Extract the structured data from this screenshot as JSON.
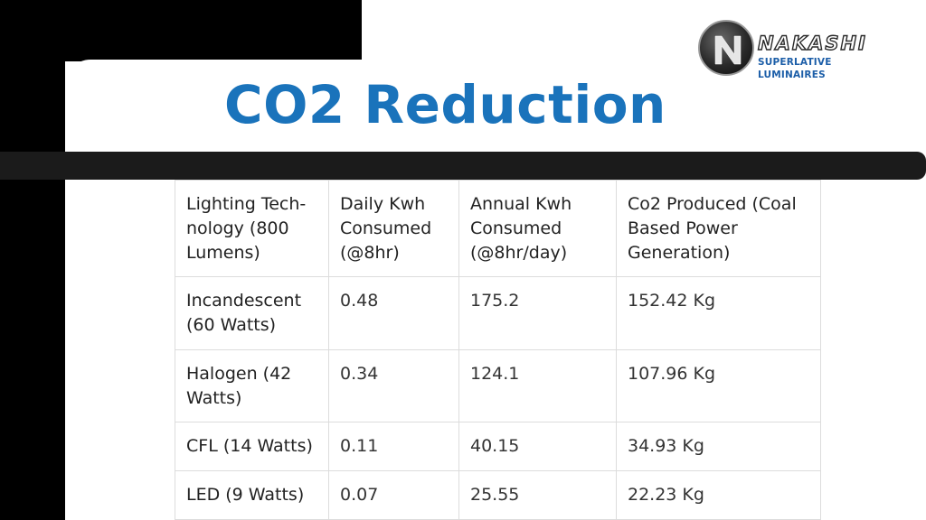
{
  "slide": {
    "title": "CO2 Reduction",
    "colors": {
      "title": "#1a73bb",
      "band": "#1b1b1b",
      "background_corner": "#000000",
      "logo_tagline": "#1c5ea8"
    }
  },
  "logo": {
    "icon": "n-letter-disc-icon",
    "name": "NAKASHI",
    "tagline": "SUPERLATIVE LUMINAIRES"
  },
  "table": {
    "headers": [
      "Lighting Tech-nology (800 Lumens)",
      "Daily Kwh Consumed (@8hr)",
      "Annual Kwh Consumed (@8hr/day)",
      "Co2 Produced (Coal Based Power Generation)"
    ],
    "rows": [
      [
        "Incandescent (60 Watts)",
        "0.48",
        "175.2",
        "152.42 Kg"
      ],
      [
        "Halogen (42 Watts)",
        "0.34",
        "124.1",
        "107.96 Kg"
      ],
      [
        "CFL (14 Watts)",
        "0.11",
        "40.15",
        "34.93 Kg"
      ],
      [
        "LED (9 Watts)",
        "0.07",
        "25.55",
        "22.23 Kg"
      ]
    ]
  }
}
